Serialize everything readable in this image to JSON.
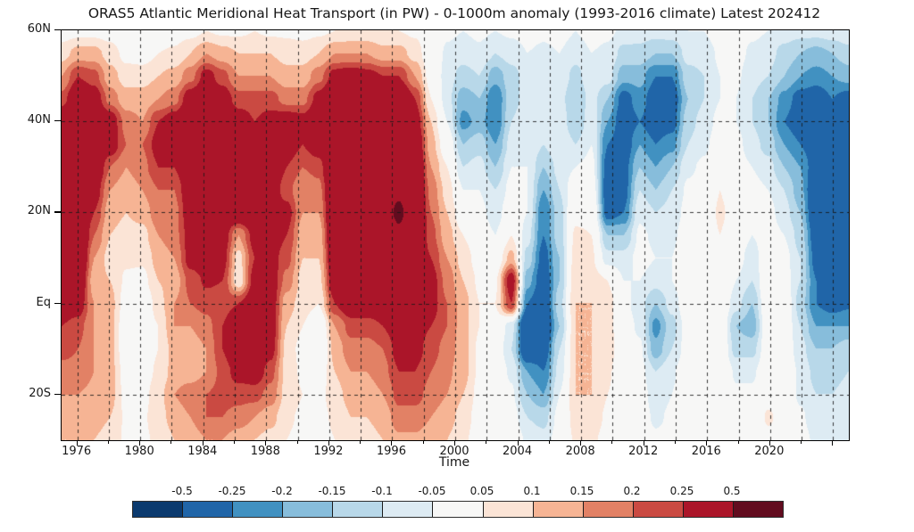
{
  "figure": {
    "title": "ORAS5 Atlantic Meridional Heat Transport (in PW) - 0-1000m anomaly (1993-2016 climate) Latest 202412"
  },
  "chart_data": {
    "type": "heatmap",
    "title": "ORAS5 Atlantic Meridional Heat Transport (in PW) - 0-1000m anomaly (1993-2016 climate) Latest 202412",
    "xlabel": "Time",
    "ylabel": "",
    "units": "PW",
    "x_range": [
      1975,
      2025
    ],
    "y_range_lat": [
      -30,
      60
    ],
    "grid": "dashed, vertical every 2 years, horizontal at 40N/20N/Eq/20S",
    "x_major_ticks": [
      1976,
      1980,
      1984,
      1988,
      1992,
      1996,
      2000,
      2004,
      2008,
      2012,
      2016,
      2020
    ],
    "x_grid_step_years": 2,
    "y_ticks": [
      {
        "lat": 60,
        "label": "60N"
      },
      {
        "lat": 40,
        "label": "40N"
      },
      {
        "lat": 20,
        "label": "20N"
      },
      {
        "lat": 0,
        "label": "Eq"
      },
      {
        "lat": -20,
        "label": "20S"
      }
    ],
    "grid_lats": [
      40,
      20,
      0,
      -20
    ],
    "x_years": [
      1975,
      1976,
      1977,
      1978,
      1979,
      1980,
      1981,
      1982,
      1983,
      1984,
      1985,
      1986,
      1987,
      1988,
      1989,
      1990,
      1991,
      1992,
      1993,
      1994,
      1995,
      1996,
      1997,
      1998,
      1999,
      2000,
      2001,
      2002,
      2003,
      2004,
      2005,
      2006,
      2007,
      2008,
      2009,
      2010,
      2011,
      2012,
      2013,
      2014,
      2015,
      2016,
      2017,
      2018,
      2019,
      2020,
      2021,
      2022,
      2023,
      2024
    ],
    "y_lats": [
      60,
      55,
      50,
      45,
      40,
      35,
      30,
      25,
      20,
      15,
      10,
      5,
      0,
      -5,
      -10,
      -15,
      -20,
      -25,
      -30
    ],
    "values_pw": [
      [
        0.02,
        0.03,
        0.03,
        0.02,
        -0.03,
        -0.04,
        0.0,
        0.02,
        0.03,
        0.05,
        0.04,
        0.04,
        0.05,
        0.04,
        0.04,
        0.03,
        0.04,
        0.05,
        0.06,
        0.06,
        0.05,
        0.05,
        0.04,
        0.0,
        -0.04,
        -0.05,
        -0.04,
        -0.05,
        -0.04,
        -0.03,
        -0.04,
        -0.03,
        -0.05,
        -0.03,
        -0.04,
        -0.06,
        -0.07,
        -0.08,
        -0.07,
        -0.05,
        -0.05,
        -0.02,
        -0.02,
        -0.04,
        -0.05,
        -0.07,
        -0.08,
        -0.08,
        -0.07,
        -0.06
      ],
      [
        0.08,
        0.12,
        0.12,
        0.08,
        0.03,
        0.02,
        0.05,
        0.06,
        0.1,
        0.15,
        0.12,
        0.1,
        0.1,
        0.1,
        0.08,
        0.08,
        0.1,
        0.15,
        0.15,
        0.15,
        0.12,
        0.12,
        0.08,
        0.0,
        -0.06,
        -0.08,
        -0.06,
        -0.1,
        -0.08,
        -0.05,
        -0.06,
        -0.05,
        -0.08,
        -0.05,
        -0.06,
        -0.12,
        -0.12,
        -0.15,
        -0.15,
        -0.08,
        -0.08,
        -0.04,
        -0.03,
        -0.06,
        -0.08,
        -0.12,
        -0.15,
        -0.17,
        -0.15,
        -0.12
      ],
      [
        0.15,
        0.25,
        0.22,
        0.12,
        0.08,
        0.08,
        0.1,
        0.12,
        0.18,
        0.28,
        0.22,
        0.15,
        0.15,
        0.15,
        0.12,
        0.12,
        0.18,
        0.28,
        0.3,
        0.28,
        0.25,
        0.25,
        0.15,
        0.02,
        -0.08,
        -0.12,
        -0.1,
        -0.18,
        -0.12,
        -0.08,
        -0.08,
        -0.06,
        -0.12,
        -0.06,
        -0.08,
        -0.18,
        -0.18,
        -0.25,
        -0.25,
        -0.12,
        -0.1,
        -0.05,
        -0.04,
        -0.08,
        -0.1,
        -0.15,
        -0.2,
        -0.22,
        -0.2,
        -0.18
      ],
      [
        0.22,
        0.35,
        0.3,
        0.18,
        0.12,
        0.12,
        0.15,
        0.18,
        0.3,
        0.35,
        0.3,
        0.22,
        0.22,
        0.22,
        0.18,
        0.18,
        0.28,
        0.38,
        0.4,
        0.4,
        0.38,
        0.38,
        0.25,
        0.05,
        -0.08,
        -0.18,
        -0.15,
        -0.25,
        -0.12,
        -0.08,
        -0.1,
        -0.08,
        -0.15,
        -0.08,
        -0.15,
        -0.28,
        -0.22,
        -0.3,
        -0.3,
        -0.15,
        -0.1,
        -0.05,
        -0.05,
        -0.1,
        -0.15,
        -0.22,
        -0.28,
        -0.3,
        -0.25,
        -0.28
      ],
      [
        0.35,
        0.45,
        0.4,
        0.3,
        0.18,
        0.15,
        0.25,
        0.3,
        0.4,
        0.42,
        0.4,
        0.3,
        0.25,
        0.28,
        0.3,
        0.28,
        0.35,
        0.45,
        0.45,
        0.45,
        0.42,
        0.45,
        0.3,
        0.1,
        -0.05,
        -0.22,
        -0.18,
        -0.25,
        -0.1,
        -0.06,
        -0.1,
        -0.06,
        -0.15,
        -0.06,
        -0.2,
        -0.3,
        -0.25,
        -0.3,
        -0.28,
        -0.12,
        -0.08,
        -0.03,
        -0.05,
        -0.1,
        -0.15,
        -0.25,
        -0.3,
        -0.3,
        -0.28,
        -0.32
      ],
      [
        0.4,
        0.45,
        0.42,
        0.3,
        0.2,
        0.2,
        0.28,
        0.3,
        0.4,
        0.42,
        0.4,
        0.35,
        0.35,
        0.35,
        0.3,
        0.25,
        0.3,
        0.45,
        0.45,
        0.45,
        0.42,
        0.45,
        0.35,
        0.12,
        0.0,
        -0.15,
        -0.12,
        -0.2,
        -0.08,
        -0.05,
        -0.1,
        -0.05,
        -0.1,
        -0.05,
        -0.25,
        -0.3,
        -0.2,
        -0.25,
        -0.22,
        -0.1,
        -0.06,
        -0.02,
        -0.03,
        -0.08,
        -0.12,
        -0.2,
        -0.25,
        -0.3,
        -0.3,
        -0.32
      ],
      [
        0.4,
        0.42,
        0.35,
        0.2,
        0.15,
        0.18,
        0.25,
        0.25,
        0.35,
        0.4,
        0.38,
        0.35,
        0.35,
        0.32,
        0.25,
        0.2,
        0.22,
        0.42,
        0.45,
        0.45,
        0.42,
        0.45,
        0.38,
        0.15,
        0.05,
        -0.1,
        -0.08,
        -0.15,
        -0.05,
        -0.05,
        -0.15,
        -0.08,
        -0.05,
        -0.03,
        -0.28,
        -0.28,
        -0.15,
        -0.2,
        -0.15,
        -0.06,
        -0.04,
        0.0,
        -0.02,
        -0.05,
        -0.08,
        -0.15,
        -0.2,
        -0.3,
        -0.35,
        -0.35
      ],
      [
        0.4,
        0.4,
        0.3,
        0.15,
        0.12,
        0.15,
        0.2,
        0.2,
        0.32,
        0.38,
        0.35,
        0.35,
        0.35,
        0.3,
        0.22,
        0.15,
        0.18,
        0.4,
        0.45,
        0.45,
        0.45,
        0.48,
        0.4,
        0.18,
        0.08,
        -0.05,
        -0.05,
        -0.1,
        -0.03,
        -0.05,
        -0.2,
        -0.1,
        0.0,
        0.0,
        -0.3,
        -0.28,
        -0.1,
        -0.15,
        -0.1,
        -0.04,
        -0.02,
        0.05,
        0.0,
        -0.03,
        -0.05,
        -0.1,
        -0.18,
        -0.35,
        -0.4,
        -0.4
      ],
      [
        0.42,
        0.4,
        0.25,
        0.12,
        0.1,
        0.12,
        0.18,
        0.18,
        0.3,
        0.35,
        0.32,
        0.35,
        0.35,
        0.3,
        0.28,
        0.15,
        0.15,
        0.4,
        0.45,
        0.45,
        0.45,
        0.52,
        0.42,
        0.2,
        0.1,
        0.0,
        -0.03,
        -0.08,
        0.0,
        -0.05,
        -0.25,
        -0.12,
        0.03,
        0.03,
        -0.28,
        -0.25,
        -0.06,
        -0.1,
        -0.08,
        -0.03,
        0.0,
        0.06,
        0.02,
        -0.02,
        -0.03,
        -0.08,
        -0.15,
        -0.35,
        -0.42,
        -0.4
      ],
      [
        0.45,
        0.42,
        0.2,
        0.1,
        0.08,
        0.08,
        0.15,
        0.18,
        0.28,
        0.32,
        0.3,
        0.15,
        0.28,
        0.3,
        0.25,
        0.12,
        0.12,
        0.38,
        0.42,
        0.42,
        0.42,
        0.48,
        0.38,
        0.22,
        0.12,
        0.05,
        0.0,
        -0.05,
        0.05,
        -0.08,
        -0.25,
        -0.12,
        0.06,
        0.05,
        -0.15,
        -0.15,
        -0.04,
        -0.06,
        -0.06,
        -0.02,
        0.0,
        0.05,
        0.0,
        -0.05,
        -0.02,
        -0.05,
        -0.12,
        -0.3,
        -0.4,
        -0.35
      ],
      [
        0.42,
        0.4,
        0.15,
        0.08,
        0.06,
        0.06,
        0.12,
        0.15,
        0.28,
        0.3,
        0.28,
        0.08,
        0.25,
        0.28,
        0.22,
        0.1,
        0.1,
        0.35,
        0.4,
        0.4,
        0.4,
        0.42,
        0.32,
        0.25,
        0.15,
        0.08,
        0.02,
        0.0,
        0.12,
        -0.12,
        -0.28,
        -0.15,
        0.08,
        0.06,
        -0.08,
        -0.08,
        -0.03,
        -0.05,
        -0.05,
        0.0,
        0.0,
        0.04,
        -0.02,
        -0.08,
        0.0,
        -0.03,
        -0.1,
        -0.28,
        -0.35,
        -0.3
      ],
      [
        0.38,
        0.35,
        0.12,
        0.1,
        0.04,
        0.03,
        0.1,
        0.12,
        0.22,
        0.26,
        0.25,
        0.06,
        0.28,
        0.3,
        0.18,
        0.08,
        0.08,
        0.32,
        0.38,
        0.38,
        0.38,
        0.4,
        0.28,
        0.28,
        0.18,
        0.1,
        0.04,
        0.04,
        0.3,
        -0.18,
        -0.3,
        -0.15,
        0.1,
        0.08,
        0.05,
        -0.05,
        -0.05,
        -0.08,
        -0.05,
        0.0,
        0.02,
        0.03,
        -0.05,
        -0.1,
        0.02,
        -0.02,
        -0.1,
        -0.25,
        -0.32,
        -0.3
      ],
      [
        0.32,
        0.3,
        0.15,
        0.12,
        0.02,
        -0.02,
        0.08,
        0.15,
        0.2,
        0.22,
        0.22,
        0.25,
        0.32,
        0.3,
        0.12,
        0.08,
        0.05,
        0.25,
        0.32,
        0.32,
        0.32,
        0.35,
        0.25,
        0.28,
        0.2,
        0.12,
        0.05,
        0.05,
        0.25,
        -0.25,
        -0.32,
        -0.12,
        0.1,
        0.1,
        0.08,
        -0.03,
        -0.08,
        -0.15,
        -0.08,
        0.0,
        0.02,
        0.02,
        -0.08,
        -0.15,
        0.02,
        0.0,
        -0.12,
        -0.25,
        -0.28,
        -0.26
      ],
      [
        0.25,
        0.22,
        0.15,
        0.12,
        0.0,
        0.0,
        0.05,
        0.15,
        0.15,
        0.18,
        0.25,
        0.35,
        0.38,
        0.3,
        0.1,
        0.05,
        -0.03,
        0.15,
        0.22,
        0.22,
        0.25,
        0.3,
        0.28,
        0.25,
        0.2,
        0.12,
        0.05,
        0.02,
        -0.08,
        -0.38,
        -0.35,
        -0.15,
        0.1,
        0.1,
        0.08,
        -0.02,
        -0.06,
        -0.22,
        -0.12,
        -0.02,
        0.0,
        0.02,
        -0.15,
        -0.18,
        0.0,
        0.0,
        -0.1,
        -0.2,
        -0.2,
        -0.2
      ],
      [
        0.22,
        0.2,
        0.15,
        0.12,
        0.0,
        0.0,
        0.05,
        0.12,
        0.12,
        0.15,
        0.25,
        0.35,
        0.38,
        0.28,
        0.08,
        0.03,
        -0.05,
        0.12,
        0.18,
        0.18,
        0.2,
        0.28,
        0.28,
        0.22,
        0.18,
        0.12,
        0.04,
        0.0,
        -0.1,
        -0.35,
        -0.3,
        -0.1,
        0.1,
        0.1,
        0.08,
        0.0,
        -0.04,
        -0.18,
        -0.1,
        -0.02,
        0.0,
        0.02,
        -0.12,
        -0.12,
        0.0,
        0.0,
        -0.08,
        -0.15,
        -0.15,
        -0.12
      ],
      [
        0.18,
        0.18,
        0.15,
        0.12,
        0.02,
        0.02,
        0.06,
        0.12,
        0.12,
        0.15,
        0.22,
        0.28,
        0.3,
        0.22,
        0.08,
        0.04,
        0.0,
        0.1,
        0.15,
        0.15,
        0.18,
        0.25,
        0.25,
        0.2,
        0.16,
        0.12,
        0.04,
        0.0,
        -0.06,
        -0.2,
        -0.25,
        -0.08,
        0.1,
        0.1,
        0.06,
        0.0,
        -0.03,
        -0.1,
        -0.06,
        0.0,
        0.0,
        0.02,
        -0.06,
        -0.06,
        0.0,
        0.0,
        -0.06,
        -0.12,
        -0.12,
        -0.1
      ],
      [
        0.15,
        0.15,
        0.14,
        0.12,
        0.03,
        0.03,
        0.08,
        0.15,
        0.18,
        0.2,
        0.22,
        0.22,
        0.22,
        0.18,
        0.08,
        0.05,
        0.03,
        0.08,
        0.12,
        0.12,
        0.15,
        0.22,
        0.22,
        0.18,
        0.15,
        0.1,
        0.03,
        0.0,
        -0.04,
        -0.15,
        -0.2,
        -0.05,
        0.1,
        0.1,
        0.05,
        0.0,
        -0.02,
        -0.08,
        -0.05,
        0.0,
        0.0,
        0.02,
        -0.04,
        -0.04,
        0.02,
        0.0,
        -0.06,
        -0.1,
        -0.1,
        -0.08
      ],
      [
        0.12,
        0.12,
        0.12,
        0.1,
        0.04,
        0.04,
        0.08,
        0.12,
        0.15,
        0.2,
        0.2,
        0.18,
        0.15,
        0.12,
        0.06,
        0.04,
        0.03,
        0.06,
        0.1,
        0.1,
        0.12,
        0.18,
        0.18,
        0.15,
        0.12,
        0.08,
        0.02,
        0.0,
        -0.02,
        -0.1,
        -0.12,
        -0.03,
        0.08,
        0.08,
        0.04,
        0.0,
        -0.02,
        -0.06,
        -0.04,
        0.0,
        0.02,
        0.02,
        -0.02,
        -0.02,
        0.06,
        0.02,
        -0.04,
        -0.08,
        -0.08,
        -0.06
      ],
      [
        0.1,
        0.1,
        0.1,
        0.08,
        0.04,
        0.04,
        0.06,
        0.1,
        0.12,
        0.15,
        0.15,
        0.12,
        0.1,
        0.08,
        0.05,
        0.03,
        0.02,
        0.05,
        0.08,
        0.08,
        0.1,
        0.14,
        0.14,
        0.12,
        0.1,
        0.06,
        0.02,
        0.0,
        0.0,
        -0.06,
        -0.08,
        -0.02,
        0.06,
        0.06,
        0.03,
        0.0,
        -0.01,
        -0.04,
        -0.03,
        0.0,
        0.02,
        0.02,
        -0.01,
        -0.01,
        0.03,
        0.02,
        -0.03,
        -0.06,
        -0.06,
        -0.05
      ]
    ],
    "colorbar": {
      "boundaries": [
        -0.5,
        -0.25,
        -0.2,
        -0.15,
        -0.1,
        -0.05,
        0.05,
        0.1,
        0.15,
        0.2,
        0.25,
        0.5
      ],
      "labels": [
        "-0.5",
        "-0.25",
        "-0.2",
        "-0.15",
        "-0.1",
        "-0.05",
        "0.05",
        "0.1",
        "0.15",
        "0.2",
        "0.25",
        "0.5"
      ],
      "colors": [
        "#0b3a6e",
        "#2065a8",
        "#4191c1",
        "#87bddb",
        "#b8d8e9",
        "#ddebf3",
        "#f7f7f6",
        "#fbe4d6",
        "#f6b494",
        "#e28165",
        "#ca4a42",
        "#ab1529",
        "#620c1f"
      ]
    }
  }
}
